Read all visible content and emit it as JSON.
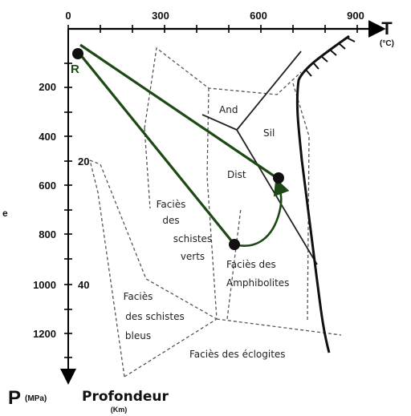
{
  "axes": {
    "t_symbol": "T",
    "t_unit": "(°C)",
    "t_ticks": [
      "0",
      "300",
      "600",
      "900"
    ],
    "p_symbol": "P",
    "p_unit": "(MPa)",
    "p_ticks": [
      "200",
      "400",
      "600",
      "800",
      "1000",
      "1200"
    ],
    "depth_label": "Profondeur",
    "depth_unit": "(Km)",
    "depth_ticks": [
      "20",
      "40"
    ],
    "side_mark": "e"
  },
  "points": {
    "r_label": "R"
  },
  "stability_fields": {
    "and": "And",
    "sil": "Sil",
    "dist": "Dist"
  },
  "facies": {
    "schistes_verts": [
      "Faciès",
      "des",
      "schistes",
      "verts"
    ],
    "amphibolites": [
      "Faciès des",
      "Amphibolites"
    ],
    "schistes_bleus": [
      "Faciès",
      "des schistes",
      "bleus"
    ],
    "eclogites": "Faciès des éclogites"
  },
  "colors": {
    "path": "#1d4a14",
    "axis": "#000000",
    "facies_boundary": "#555555"
  }
}
